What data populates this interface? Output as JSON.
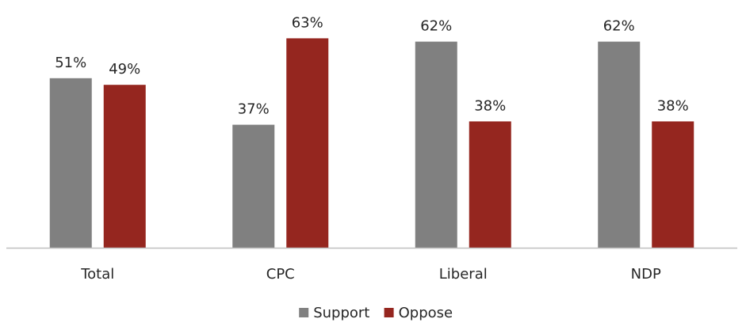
{
  "chart_data": {
    "type": "bar",
    "title": "",
    "xlabel": "",
    "ylabel": "",
    "ylim": [
      0,
      70
    ],
    "grid": false,
    "legend_position": "bottom",
    "categories": [
      "Total",
      "CPC",
      "Liberal",
      "NDP"
    ],
    "series": [
      {
        "name": "Support",
        "color": "#808080",
        "values": [
          51,
          37,
          62,
          62
        ],
        "labels": [
          "51%",
          "37%",
          "62%",
          "62%"
        ]
      },
      {
        "name": "Oppose",
        "color": "#95261F",
        "values": [
          49,
          63,
          38,
          38
        ],
        "labels": [
          "49%",
          "63%",
          "38%",
          "38%"
        ]
      }
    ]
  }
}
